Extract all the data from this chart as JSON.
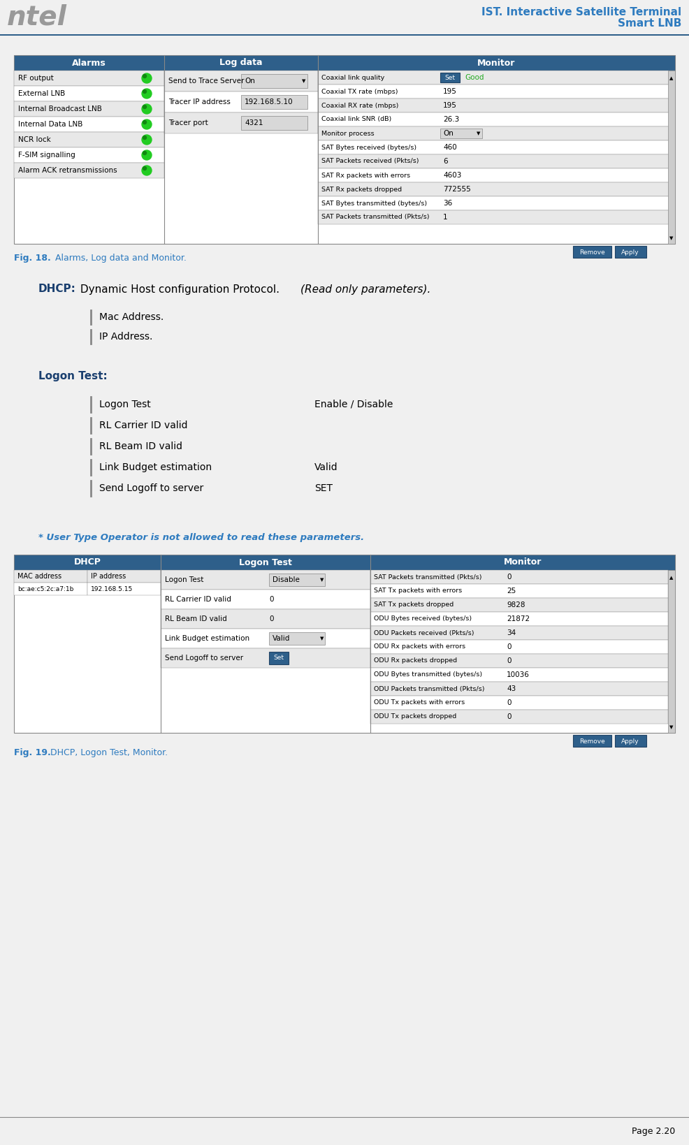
{
  "bg_color": "#f0f0f0",
  "white": "#ffffff",
  "header_blue": "#2e5f8a",
  "header_text": "#ffffff",
  "body_text": "#000000",
  "blue_title": "#2e7bbf",
  "dark_blue_bold": "#1a3f6f",
  "green_color": "#00aa00",
  "light_gray_row": "#e8e8e8",
  "medium_gray": "#d0d0d0",
  "border_color": "#888888",
  "fig18_caption": "Fig. 18.",
  "fig18_text": " Alarms, Log data and Monitor.",
  "fig19_caption": "Fig. 19.",
  "fig19_text": " DHCP, Logon Test, Monitor.",
  "page_number": "Page 2.20",
  "header_right": "IST. Interactive Satellite Terminal\nSmart LNB",
  "header_left": "ntel",
  "dhcp_bold": "DHCP:",
  "dhcp_rest": " Dynamic Host configuration Protocol. ",
  "dhcp_italic": "(Read only parameters).",
  "dhcp_items": [
    "Mac Address.",
    "IP Address."
  ],
  "logon_title": "Logon Test:",
  "logon_items": [
    "Logon Test",
    "RL Carrier ID valid",
    "RL Beam ID valid",
    "Link Budget estimation",
    "Send Logoff to server"
  ],
  "logon_right": [
    "Enable / Disable",
    "",
    "",
    "Valid",
    "SET"
  ],
  "asterisk_note": "* User Type Operator is not allowed to read these parameters.",
  "alarm_header": "Alarms",
  "logdata_header": "Log data",
  "monitor_header": "Monitor",
  "alarm_rows": [
    [
      "RF output",
      "green"
    ],
    [
      "External LNB",
      "green"
    ],
    [
      "Internal Broadcast LNB",
      "green"
    ],
    [
      "Internal Data LNB",
      "green"
    ],
    [
      "NCR lock",
      "green"
    ],
    [
      "F-SIM signalling",
      "green"
    ],
    [
      "Alarm ACK retransmissions",
      "green"
    ]
  ],
  "logdata_rows": [
    [
      "Send to Trace Server",
      "On",
      true
    ],
    [
      "Tracer IP address",
      "192.168.5.10",
      false
    ],
    [
      "Tracer port",
      "4321",
      false
    ]
  ],
  "monitor_rows": [
    [
      "Coaxial link quality",
      "Set",
      "Good"
    ],
    [
      "Coaxial TX rate (mbps)",
      "",
      "195"
    ],
    [
      "Coaxial RX rate (mbps)",
      "",
      "195"
    ],
    [
      "Coaxial link SNR (dB)",
      "",
      "26.3"
    ],
    [
      "Monitor process",
      "On",
      ""
    ],
    [
      "SAT Bytes received (bytes/s)",
      "",
      "460"
    ],
    [
      "SAT Packets received (Pkts/s)",
      "",
      "6"
    ],
    [
      "SAT Rx packets with errors",
      "",
      "4603"
    ],
    [
      "SAT Rx packets dropped",
      "",
      "772555"
    ],
    [
      "SAT Bytes transmitted (bytes/s)",
      "",
      "36"
    ],
    [
      "SAT Packets transmitted (Pkts/s)",
      "",
      "1"
    ]
  ],
  "dhcp_header": "DHCP",
  "dhcp_col1": "MAC address",
  "dhcp_col2": "IP address",
  "dhcp_data": [
    "bc:ae:c5:2c:a7:1b",
    "192.168.5.15"
  ],
  "logon_header": "Logon Test",
  "logon_table_rows": [
    [
      "Logon Test",
      "Disable",
      true
    ],
    [
      "RL Carrier ID valid",
      "0",
      false
    ],
    [
      "RL Beam ID valid",
      "0",
      false
    ],
    [
      "Link Budget estimation",
      "Valid",
      true
    ],
    [
      "Send Logoff to server",
      "Set",
      true
    ]
  ],
  "monitor2_header": "Monitor",
  "monitor2_rows": [
    [
      "SAT Packets transmitted (Pkts/s)",
      "0"
    ],
    [
      "SAT Tx packets with errors",
      "25"
    ],
    [
      "SAT Tx packets dropped",
      "9828"
    ],
    [
      "ODU Bytes received (bytes/s)",
      "21872"
    ],
    [
      "ODU Packets received (Pkts/s)",
      "34"
    ],
    [
      "ODU Rx packets with errors",
      "0"
    ],
    [
      "ODU Rx packets dropped",
      "0"
    ],
    [
      "ODU Bytes transmitted (bytes/s)",
      "10036"
    ],
    [
      "ODU Packets transmitted (Pkts/s)",
      "43"
    ],
    [
      "ODU Tx packets with errors",
      "0"
    ],
    [
      "ODU Tx packets dropped",
      "0"
    ]
  ]
}
